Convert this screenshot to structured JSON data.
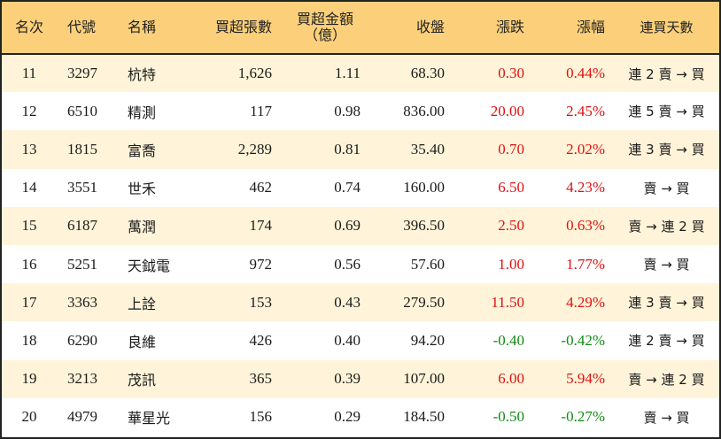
{
  "headers": {
    "rank": "名次",
    "code": "代號",
    "name": "名稱",
    "shares": "買超張數",
    "amount_line1": "買超金額",
    "amount_line2": "（億）",
    "close": "收盤",
    "change": "漲跌",
    "pct": "漲幅",
    "days": "連買天數"
  },
  "colors": {
    "header_bg": "#fcd07a",
    "odd_row_bg": "#fff4d9",
    "even_row_bg": "#ffffff",
    "up": "#e01010",
    "down": "#138a13"
  },
  "rows": [
    {
      "rank": "11",
      "code": "3297",
      "name": "杭特",
      "shares": "1,626",
      "amount": "1.11",
      "close": "68.30",
      "change": "0.30",
      "pct": "0.44%",
      "days": "連 2 賣 → 買",
      "dir": "up"
    },
    {
      "rank": "12",
      "code": "6510",
      "name": "精測",
      "shares": "117",
      "amount": "0.98",
      "close": "836.00",
      "change": "20.00",
      "pct": "2.45%",
      "days": "連 5 賣 → 買",
      "dir": "up"
    },
    {
      "rank": "13",
      "code": "1815",
      "name": "富喬",
      "shares": "2,289",
      "amount": "0.81",
      "close": "35.40",
      "change": "0.70",
      "pct": "2.02%",
      "days": "連 3 賣 → 買",
      "dir": "up"
    },
    {
      "rank": "14",
      "code": "3551",
      "name": "世禾",
      "shares": "462",
      "amount": "0.74",
      "close": "160.00",
      "change": "6.50",
      "pct": "4.23%",
      "days": "賣 → 買",
      "dir": "up"
    },
    {
      "rank": "15",
      "code": "6187",
      "name": "萬潤",
      "shares": "174",
      "amount": "0.69",
      "close": "396.50",
      "change": "2.50",
      "pct": "0.63%",
      "days": "賣 → 連 2 買",
      "dir": "up"
    },
    {
      "rank": "16",
      "code": "5251",
      "name": "天鉞電",
      "shares": "972",
      "amount": "0.56",
      "close": "57.60",
      "change": "1.00",
      "pct": "1.77%",
      "days": "賣 → 買",
      "dir": "up"
    },
    {
      "rank": "17",
      "code": "3363",
      "name": "上詮",
      "shares": "153",
      "amount": "0.43",
      "close": "279.50",
      "change": "11.50",
      "pct": "4.29%",
      "days": "連 3 賣 → 買",
      "dir": "up"
    },
    {
      "rank": "18",
      "code": "6290",
      "name": "良維",
      "shares": "426",
      "amount": "0.40",
      "close": "94.20",
      "change": "-0.40",
      "pct": "-0.42%",
      "days": "連 2 賣 → 買",
      "dir": "down"
    },
    {
      "rank": "19",
      "code": "3213",
      "name": "茂訊",
      "shares": "365",
      "amount": "0.39",
      "close": "107.00",
      "change": "6.00",
      "pct": "5.94%",
      "days": "賣 → 連 2 買",
      "dir": "up"
    },
    {
      "rank": "20",
      "code": "4979",
      "name": "華星光",
      "shares": "156",
      "amount": "0.29",
      "close": "184.50",
      "change": "-0.50",
      "pct": "-0.27%",
      "days": "賣 → 買",
      "dir": "down"
    }
  ]
}
